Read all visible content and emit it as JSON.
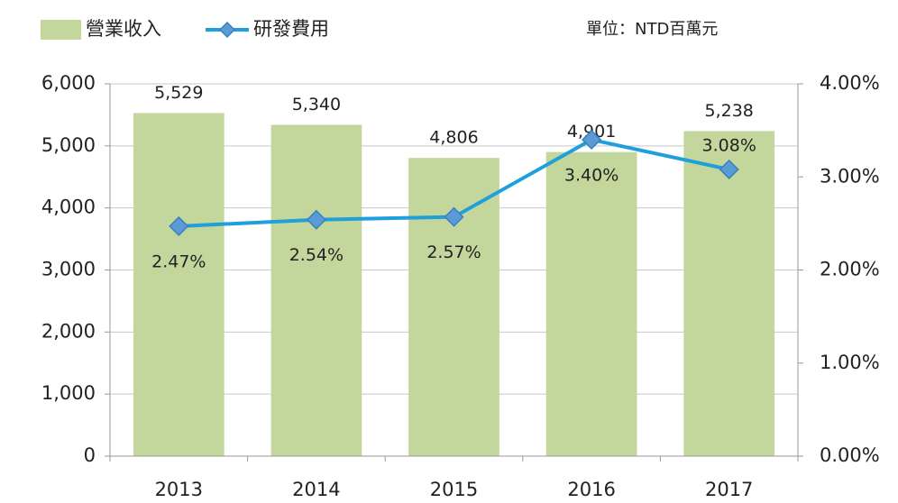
{
  "chart_data": {
    "type": "bar_line",
    "annotation": "單位：NTD百萬元",
    "categories": [
      "2013",
      "2014",
      "2015",
      "2016",
      "2017"
    ],
    "series": [
      {
        "name": "營業收入",
        "type": "bar",
        "color": "#c3d69b",
        "values": [
          5529,
          5340,
          4806,
          4901,
          5238
        ],
        "value_labels": [
          "5,529",
          "5,340",
          "4,806",
          "4,901",
          "5,238"
        ]
      },
      {
        "name": "研發費用",
        "type": "line",
        "axis": "y2",
        "color": "#1f9fdb",
        "marker_color": "#5b9bd5",
        "values": [
          2.47,
          2.54,
          2.57,
          3.4,
          3.08
        ],
        "value_labels": [
          "2.47%",
          "2.54%",
          "2.57%",
          "3.40%",
          "3.08%"
        ]
      }
    ],
    "ylim": [
      0,
      6000
    ],
    "yticks": [
      0,
      {
        "value": 1000,
        "label": "1,000"
      },
      {
        "value": 2000,
        "label": "2,000"
      },
      {
        "value": 3000,
        "label": "3,000"
      },
      {
        "value": 4000,
        "label": "4,000"
      },
      {
        "value": 5000,
        "label": "5,000"
      },
      {
        "value": 6000,
        "label": "6,000"
      }
    ],
    "y2lim": [
      0,
      4
    ],
    "y2ticks": [
      {
        "value": 0,
        "label": "0.00%"
      },
      {
        "value": 1,
        "label": "1.00%"
      },
      {
        "value": 2,
        "label": "2.00%"
      },
      {
        "value": 3,
        "label": "3.00%"
      },
      {
        "value": 4,
        "label": "4.00%"
      }
    ],
    "grid": true,
    "legend": "top-left"
  }
}
